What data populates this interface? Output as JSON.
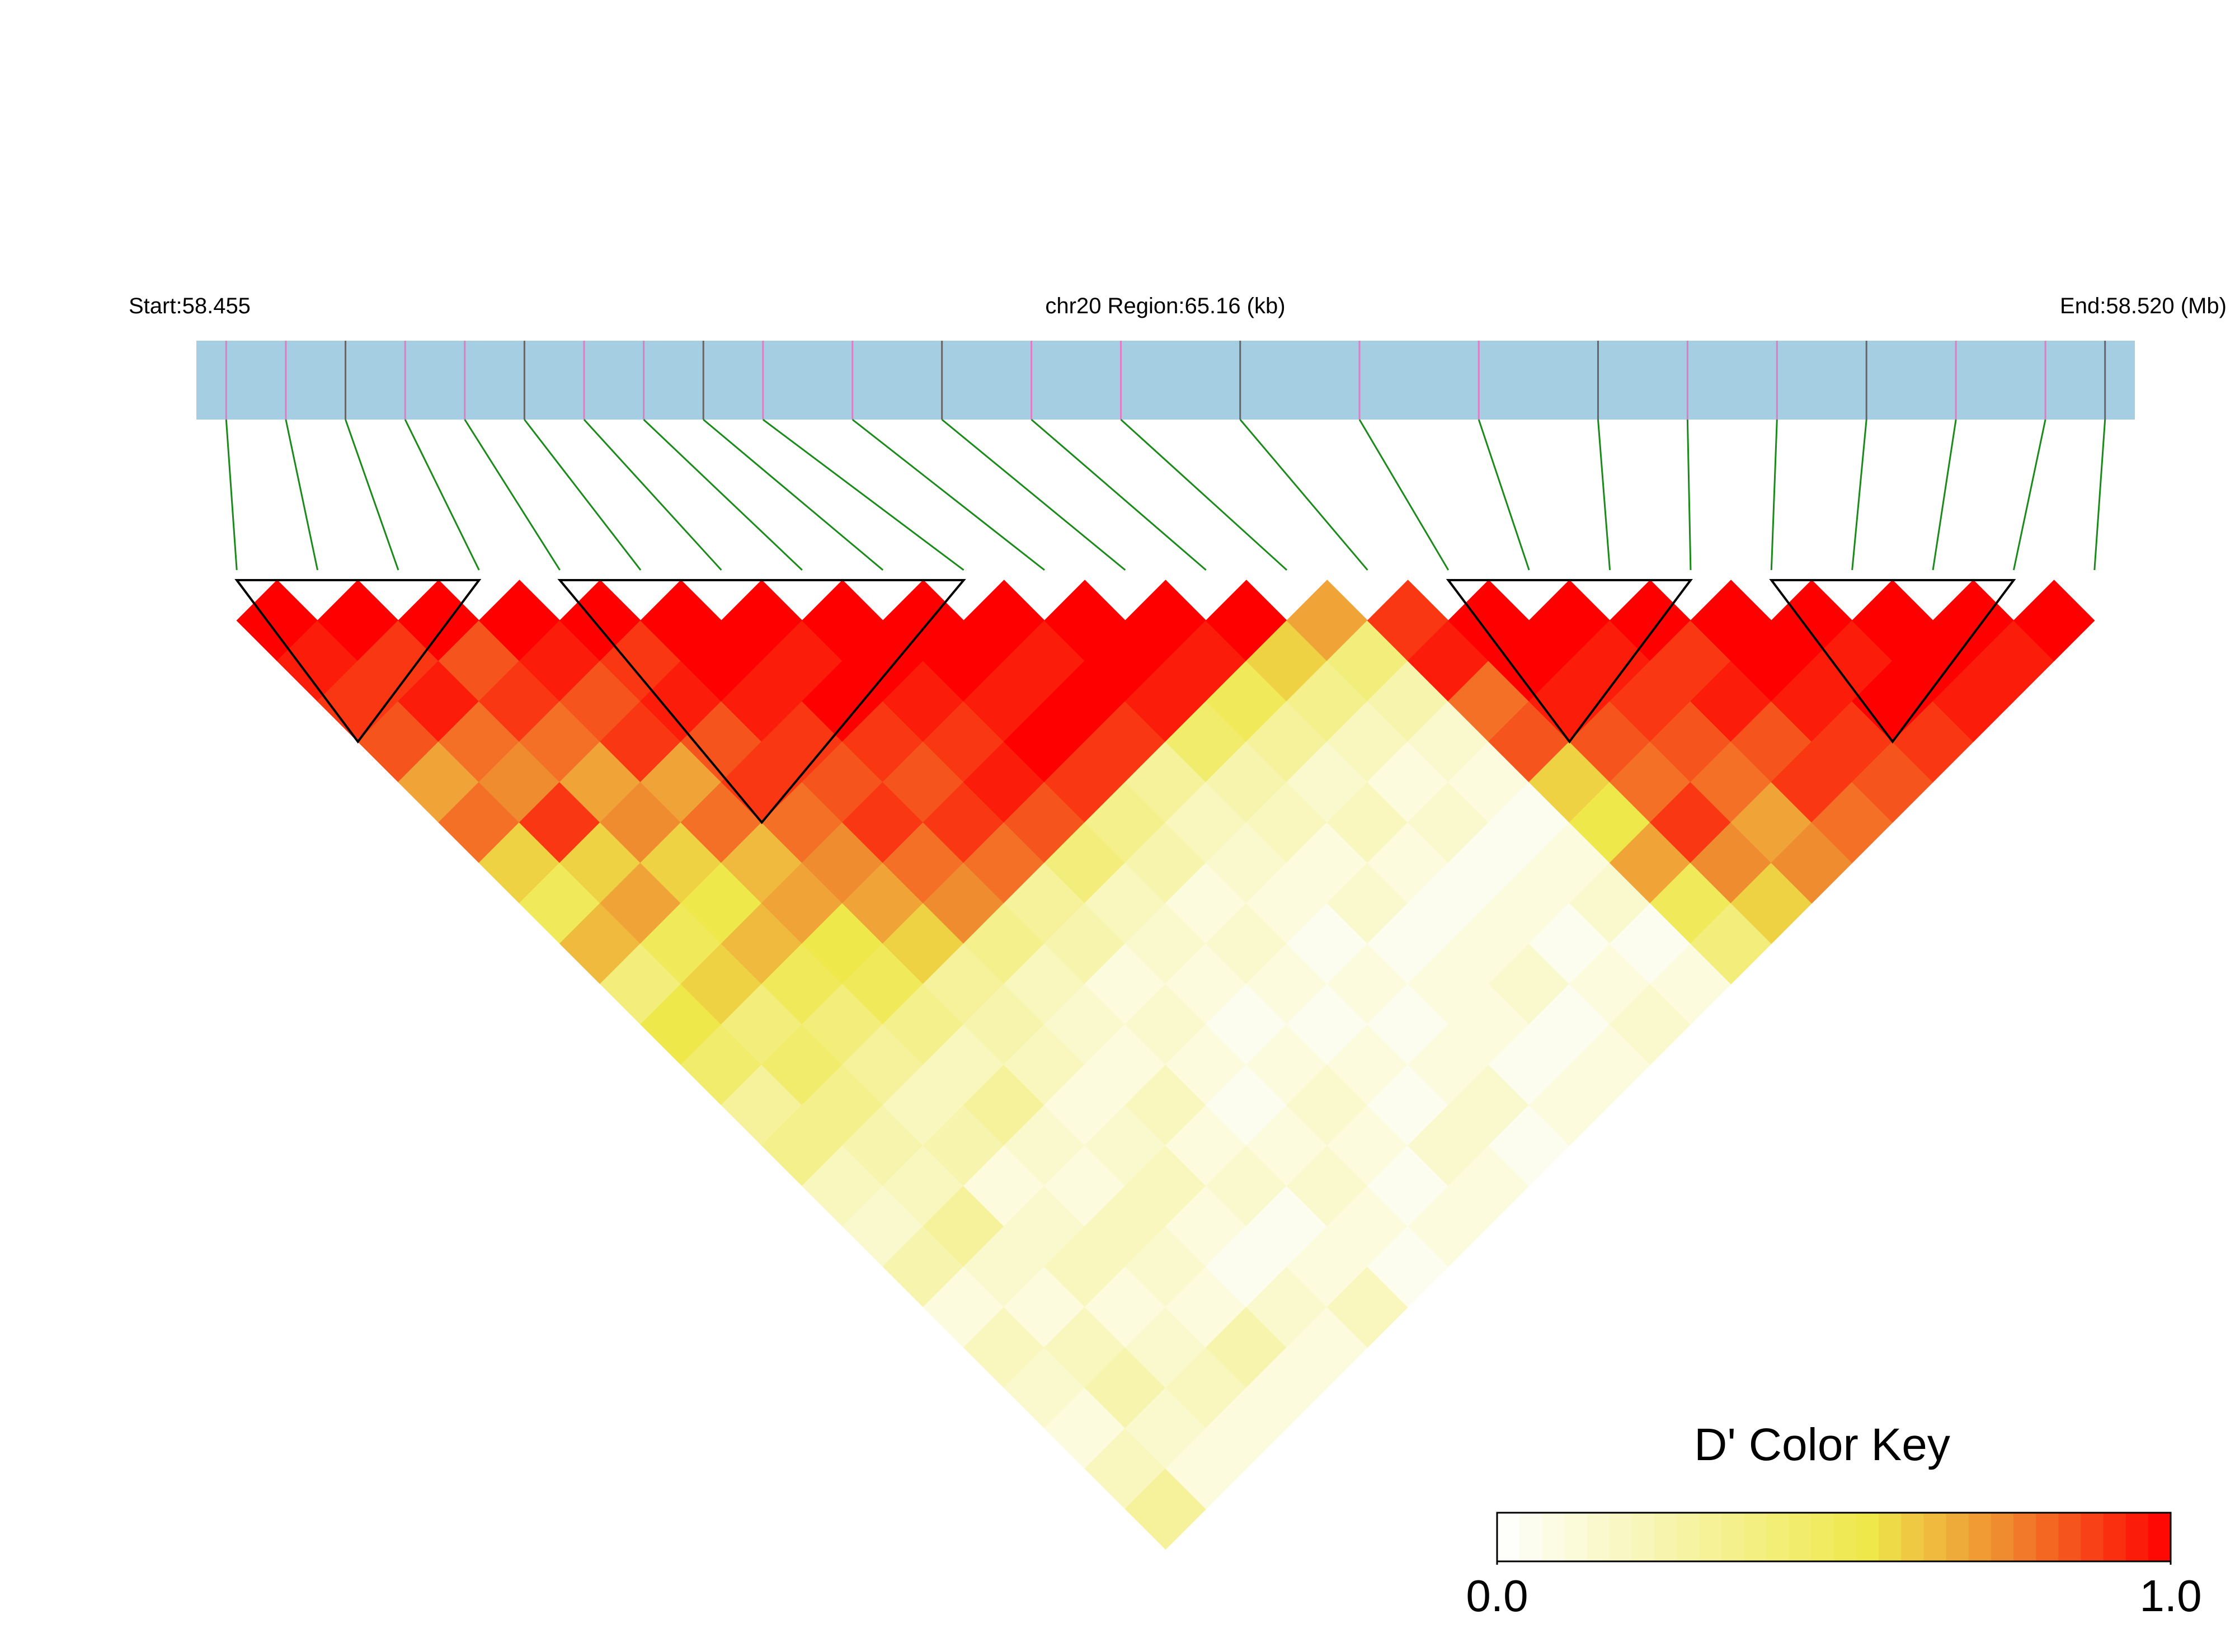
{
  "chart_data": {
    "type": "ld_heatmap",
    "start_label": "Start:58.455",
    "region_label": "chr20 Region:65.16 (kb)",
    "end_label": "End:58.520 (Mb)",
    "xlim": [
      58.455,
      58.52
    ],
    "snp_positions": [
      58.456,
      58.458,
      58.46,
      58.462,
      58.464,
      58.466,
      58.468,
      58.47,
      58.472,
      58.474,
      58.477,
      58.48,
      58.483,
      58.486,
      58.49,
      58.494,
      58.498,
      58.502,
      58.505,
      58.508,
      58.511,
      58.514,
      58.517,
      58.519
    ],
    "values": [
      [
        1,
        0.95,
        0.9,
        0.85,
        0.7,
        0.8,
        0.6,
        0.5,
        0.65,
        0.4,
        0.55,
        0.45,
        0.3,
        0.35,
        0.2,
        0.15,
        0.25,
        0.1,
        0.2,
        0.15,
        0.1,
        0.2,
        0.3
      ],
      [
        1,
        0.9,
        0.95,
        0.8,
        0.75,
        0.9,
        0.6,
        0.7,
        0.5,
        0.6,
        0.4,
        0.45,
        0.35,
        0.25,
        0.2,
        0.3,
        0.15,
        0.1,
        0.2,
        0.25,
        0.15,
        0.1
      ],
      [
        1,
        0.85,
        0.9,
        0.8,
        0.7,
        0.75,
        0.6,
        0.55,
        0.65,
        0.5,
        0.4,
        0.3,
        0.2,
        0.25,
        0.1,
        0.15,
        0.2,
        0.1,
        0.15,
        0.2,
        0.1
      ],
      [
        1,
        0.95,
        0.85,
        0.9,
        0.7,
        0.8,
        0.65,
        0.7,
        0.55,
        0.5,
        0.35,
        0.2,
        0.3,
        0.15,
        0.1,
        0.2,
        0.15,
        0.1,
        0.25,
        0.1
      ],
      [
        1,
        0.9,
        0.95,
        0.85,
        0.9,
        0.8,
        0.75,
        0.7,
        0.6,
        0.3,
        0.25,
        0.2,
        0.1,
        0.15,
        0.2,
        0.1,
        0.05,
        0.15,
        0.1
      ],
      [
        1,
        1,
        0.95,
        0.9,
        0.85,
        0.9,
        0.8,
        0.75,
        0.35,
        0.2,
        0.15,
        0.1,
        0.2,
        0.1,
        0.15,
        0.05,
        0.1,
        0.2
      ],
      [
        1,
        0.95,
        1,
        0.9,
        0.85,
        0.9,
        0.8,
        0.3,
        0.25,
        0.1,
        0.15,
        0.1,
        0.05,
        0.1,
        0.15,
        0.1,
        0.05
      ],
      [
        1,
        1,
        0.95,
        0.9,
        0.95,
        0.85,
        0.4,
        0.2,
        0.15,
        0.1,
        0.05,
        0.1,
        0.15,
        0.1,
        0.05,
        0.1
      ],
      [
        1,
        1,
        0.95,
        1,
        0.9,
        0.35,
        0.25,
        0.1,
        0.15,
        0.1,
        0.05,
        0.1,
        0.05,
        0.15,
        0.1
      ],
      [
        1,
        0.95,
        1,
        0.9,
        0.3,
        0.2,
        0.15,
        0.1,
        0.05,
        0.1,
        0.05,
        0.1,
        0.15,
        0.05
      ],
      [
        1,
        1,
        0.95,
        0.45,
        0.25,
        0.2,
        0.1,
        0.15,
        0.05,
        0.1,
        0.1,
        0.05,
        0.1
      ],
      [
        1,
        0.95,
        0.5,
        0.3,
        0.15,
        0.2,
        0.1,
        0.05,
        0.1,
        0.15,
        0.05,
        0.1
      ],
      [
        1,
        0.6,
        0.35,
        0.2,
        0.1,
        0.15,
        0.05,
        0.1,
        0.05,
        0.1,
        0.15
      ],
      [
        0.7,
        0.4,
        0.25,
        0.15,
        0.1,
        0.05,
        0.1,
        0.15,
        0.05,
        0.1
      ],
      [
        0.9,
        0.95,
        0.8,
        0.85,
        0.6,
        0.55,
        0.7,
        0.5,
        0.4
      ],
      [
        1,
        1,
        0.95,
        0.85,
        0.8,
        0.9,
        0.75,
        0.6
      ],
      [
        1,
        0.95,
        0.9,
        0.85,
        0.8,
        0.7,
        0.75
      ],
      [
        1,
        0.9,
        0.95,
        0.85,
        0.9,
        0.8
      ],
      [
        1,
        1,
        0.95,
        0.9,
        0.85
      ],
      [
        1,
        0.95,
        1,
        0.9
      ],
      [
        1,
        1,
        0.95
      ],
      [
        1,
        0.95
      ],
      [
        1
      ]
    ],
    "blocks": [
      [
        0,
        3
      ],
      [
        4,
        9
      ],
      [
        15,
        18
      ],
      [
        19,
        22
      ]
    ],
    "color_key": {
      "title": "D' Color Key",
      "lim": [
        0,
        1
      ],
      "ticks": [
        {
          "value": 0,
          "label": "0.0"
        },
        {
          "value": 1,
          "label": "1.0"
        }
      ]
    }
  }
}
